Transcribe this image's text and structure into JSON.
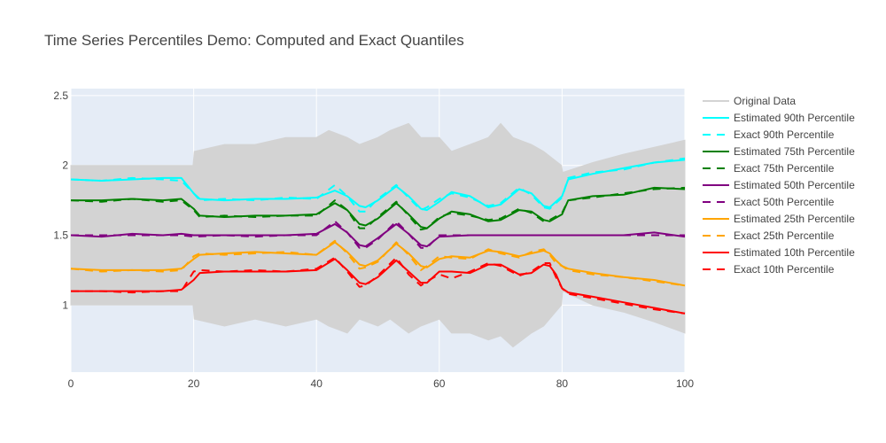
{
  "chart_data": {
    "type": "line",
    "title": "Time Series Percentiles Demo: Computed and Exact Quantiles",
    "xlabel": "",
    "ylabel": "",
    "xlim": [
      0,
      100
    ],
    "ylim": [
      0.52,
      2.55
    ],
    "x_ticks": [
      0,
      20,
      40,
      60,
      80,
      100
    ],
    "y_ticks": [
      1,
      1.5,
      2,
      2.5
    ],
    "grid": true,
    "legend_position": "right",
    "colors": {
      "plot_bg": "#e5ecf6",
      "grid": "#ffffff"
    },
    "series": [
      {
        "name": "Original Data",
        "color": "#d3d3d3",
        "dash": "solid",
        "band": true,
        "x": [
          0,
          5,
          10,
          15,
          19.9,
          20.1,
          25,
          30,
          35,
          40,
          42,
          45,
          47,
          50,
          52,
          55,
          57,
          60,
          62,
          65,
          68,
          70,
          72,
          75,
          77,
          79.9,
          80.1,
          85,
          90,
          95,
          100
        ],
        "lower": [
          1.0,
          1.0,
          1.0,
          1.0,
          1.0,
          0.9,
          0.85,
          0.9,
          0.85,
          0.9,
          0.85,
          0.8,
          0.9,
          0.85,
          0.9,
          0.8,
          0.85,
          0.9,
          0.8,
          0.8,
          0.75,
          0.78,
          0.7,
          0.8,
          0.85,
          1.0,
          1.1,
          1.0,
          0.95,
          0.88,
          0.8
        ],
        "upper": [
          2.0,
          2.0,
          2.0,
          2.0,
          2.0,
          2.1,
          2.15,
          2.15,
          2.2,
          2.2,
          2.25,
          2.2,
          2.15,
          2.2,
          2.25,
          2.3,
          2.2,
          2.2,
          2.1,
          2.15,
          2.2,
          2.3,
          2.2,
          2.15,
          2.1,
          2.0,
          1.95,
          2.02,
          2.08,
          2.13,
          2.18
        ]
      },
      {
        "name": "Estimated 90th Percentile",
        "color": "#00ffff",
        "dash": "solid",
        "x": [
          0,
          5,
          10,
          15,
          18,
          20,
          21,
          25,
          30,
          35,
          40,
          43,
          45,
          47,
          48,
          50,
          53,
          55,
          57,
          58,
          60,
          62,
          65,
          68,
          70,
          73,
          75,
          77,
          78,
          80,
          81,
          85,
          90,
          95,
          100
        ],
        "y": [
          1.9,
          1.89,
          1.9,
          1.91,
          1.91,
          1.8,
          1.76,
          1.75,
          1.76,
          1.76,
          1.77,
          1.82,
          1.78,
          1.71,
          1.7,
          1.75,
          1.85,
          1.78,
          1.69,
          1.68,
          1.74,
          1.81,
          1.78,
          1.7,
          1.72,
          1.83,
          1.8,
          1.71,
          1.7,
          1.78,
          1.9,
          1.94,
          1.98,
          2.02,
          2.04
        ]
      },
      {
        "name": "Exact 90th Percentile",
        "color": "#00ffff",
        "dash": "dash",
        "x": [
          0,
          5,
          10,
          15,
          18,
          20,
          21,
          25,
          30,
          35,
          40,
          43,
          45,
          47,
          48,
          50,
          53,
          55,
          57,
          58,
          60,
          62,
          65,
          68,
          70,
          73,
          75,
          77,
          78,
          80,
          81,
          85,
          90,
          95,
          100
        ],
        "y": [
          1.9,
          1.89,
          1.91,
          1.9,
          1.89,
          1.8,
          1.75,
          1.76,
          1.75,
          1.77,
          1.76,
          1.86,
          1.78,
          1.67,
          1.67,
          1.76,
          1.86,
          1.77,
          1.68,
          1.7,
          1.76,
          1.8,
          1.77,
          1.71,
          1.73,
          1.84,
          1.79,
          1.7,
          1.69,
          1.77,
          1.91,
          1.95,
          1.97,
          2.02,
          2.05
        ]
      },
      {
        "name": "Estimated 75th Percentile",
        "color": "#008000",
        "dash": "solid",
        "x": [
          0,
          5,
          10,
          15,
          18,
          20,
          21,
          25,
          30,
          35,
          40,
          43,
          45,
          47,
          48,
          50,
          53,
          55,
          57,
          58,
          60,
          62,
          65,
          68,
          70,
          73,
          75,
          77,
          78,
          80,
          81,
          85,
          90,
          95,
          100
        ],
        "y": [
          1.75,
          1.75,
          1.76,
          1.75,
          1.76,
          1.69,
          1.64,
          1.63,
          1.64,
          1.64,
          1.65,
          1.73,
          1.68,
          1.58,
          1.57,
          1.62,
          1.73,
          1.65,
          1.56,
          1.55,
          1.62,
          1.67,
          1.65,
          1.6,
          1.61,
          1.68,
          1.67,
          1.61,
          1.6,
          1.65,
          1.75,
          1.78,
          1.79,
          1.84,
          1.83
        ]
      },
      {
        "name": "Exact 75th Percentile",
        "color": "#008000",
        "dash": "dash",
        "x": [
          0,
          5,
          10,
          15,
          18,
          20,
          21,
          25,
          30,
          35,
          40,
          43,
          45,
          47,
          48,
          50,
          53,
          55,
          57,
          58,
          60,
          62,
          65,
          68,
          70,
          73,
          75,
          77,
          78,
          80,
          81,
          85,
          90,
          95,
          100
        ],
        "y": [
          1.75,
          1.74,
          1.76,
          1.74,
          1.75,
          1.68,
          1.63,
          1.64,
          1.63,
          1.64,
          1.64,
          1.75,
          1.68,
          1.55,
          1.55,
          1.63,
          1.74,
          1.64,
          1.54,
          1.55,
          1.63,
          1.66,
          1.64,
          1.61,
          1.62,
          1.69,
          1.66,
          1.6,
          1.61,
          1.66,
          1.75,
          1.77,
          1.8,
          1.83,
          1.84
        ]
      },
      {
        "name": "Estimated 50th Percentile",
        "color": "#800080",
        "dash": "solid",
        "x": [
          0,
          5,
          10,
          15,
          18,
          20,
          25,
          30,
          35,
          40,
          43,
          45,
          47,
          48,
          50,
          53,
          55,
          57,
          58,
          60,
          65,
          70,
          75,
          80,
          85,
          90,
          95,
          100
        ],
        "y": [
          1.5,
          1.49,
          1.51,
          1.5,
          1.51,
          1.5,
          1.5,
          1.5,
          1.5,
          1.51,
          1.58,
          1.52,
          1.43,
          1.42,
          1.48,
          1.58,
          1.51,
          1.43,
          1.42,
          1.49,
          1.5,
          1.5,
          1.5,
          1.5,
          1.5,
          1.5,
          1.52,
          1.49
        ]
      },
      {
        "name": "Exact 50th Percentile",
        "color": "#800080",
        "dash": "dash",
        "x": [
          0,
          5,
          10,
          15,
          18,
          20,
          25,
          30,
          35,
          40,
          43,
          45,
          47,
          48,
          50,
          53,
          55,
          57,
          58,
          60,
          65,
          70,
          75,
          80,
          85,
          90,
          95,
          100
        ],
        "y": [
          1.5,
          1.5,
          1.5,
          1.5,
          1.5,
          1.49,
          1.5,
          1.49,
          1.5,
          1.5,
          1.6,
          1.52,
          1.41,
          1.41,
          1.47,
          1.6,
          1.51,
          1.41,
          1.41,
          1.5,
          1.5,
          1.5,
          1.5,
          1.5,
          1.5,
          1.5,
          1.5,
          1.5
        ]
      },
      {
        "name": "Estimated 25th Percentile",
        "color": "#ffa500",
        "dash": "solid",
        "x": [
          0,
          5,
          10,
          15,
          18,
          20,
          21,
          25,
          30,
          35,
          40,
          43,
          45,
          47,
          48,
          50,
          53,
          55,
          57,
          58,
          60,
          62,
          65,
          68,
          70,
          73,
          75,
          77,
          78,
          79,
          80,
          81,
          85,
          90,
          95,
          100
        ],
        "y": [
          1.26,
          1.25,
          1.25,
          1.25,
          1.26,
          1.33,
          1.36,
          1.37,
          1.38,
          1.37,
          1.36,
          1.45,
          1.38,
          1.29,
          1.28,
          1.32,
          1.44,
          1.37,
          1.28,
          1.27,
          1.33,
          1.35,
          1.34,
          1.39,
          1.38,
          1.35,
          1.37,
          1.39,
          1.37,
          1.32,
          1.28,
          1.26,
          1.23,
          1.2,
          1.18,
          1.14
        ]
      },
      {
        "name": "Exact 25th Percentile",
        "color": "#ffa500",
        "dash": "dash",
        "x": [
          0,
          5,
          10,
          15,
          18,
          20,
          21,
          25,
          30,
          35,
          40,
          43,
          45,
          47,
          48,
          50,
          53,
          55,
          57,
          58,
          60,
          62,
          65,
          68,
          70,
          73,
          75,
          77,
          78,
          79,
          80,
          81,
          85,
          90,
          95,
          100
        ],
        "y": [
          1.26,
          1.24,
          1.25,
          1.24,
          1.25,
          1.35,
          1.37,
          1.36,
          1.37,
          1.38,
          1.36,
          1.46,
          1.37,
          1.26,
          1.27,
          1.31,
          1.45,
          1.36,
          1.25,
          1.28,
          1.35,
          1.34,
          1.33,
          1.4,
          1.37,
          1.34,
          1.38,
          1.4,
          1.36,
          1.3,
          1.28,
          1.25,
          1.22,
          1.2,
          1.17,
          1.14
        ]
      },
      {
        "name": "Estimated 10th Percentile",
        "color": "#ff0000",
        "dash": "solid",
        "x": [
          0,
          5,
          10,
          15,
          18,
          20,
          21,
          25,
          30,
          35,
          40,
          43,
          45,
          47,
          48,
          50,
          53,
          55,
          57,
          58,
          60,
          62,
          65,
          68,
          70,
          73,
          75,
          77,
          78,
          79,
          80,
          81,
          85,
          90,
          95,
          100
        ],
        "y": [
          1.1,
          1.1,
          1.1,
          1.1,
          1.11,
          1.18,
          1.23,
          1.24,
          1.24,
          1.24,
          1.25,
          1.33,
          1.25,
          1.16,
          1.15,
          1.2,
          1.32,
          1.24,
          1.16,
          1.16,
          1.24,
          1.24,
          1.23,
          1.29,
          1.29,
          1.22,
          1.23,
          1.29,
          1.28,
          1.22,
          1.12,
          1.09,
          1.06,
          1.02,
          0.98,
          0.94
        ]
      },
      {
        "name": "Exact 10th Percentile",
        "color": "#ff0000",
        "dash": "dash",
        "x": [
          0,
          5,
          10,
          15,
          18,
          20,
          21,
          25,
          30,
          35,
          40,
          43,
          45,
          47,
          48,
          50,
          53,
          55,
          57,
          58,
          60,
          62,
          65,
          68,
          70,
          73,
          75,
          77,
          78,
          79,
          80,
          81,
          85,
          90,
          95,
          100
        ],
        "y": [
          1.1,
          1.1,
          1.09,
          1.1,
          1.1,
          1.24,
          1.25,
          1.24,
          1.25,
          1.24,
          1.26,
          1.34,
          1.24,
          1.13,
          1.14,
          1.21,
          1.34,
          1.22,
          1.14,
          1.17,
          1.22,
          1.19,
          1.24,
          1.3,
          1.28,
          1.21,
          1.24,
          1.3,
          1.3,
          1.2,
          1.12,
          1.08,
          1.05,
          1.01,
          0.97,
          0.94
        ]
      }
    ]
  }
}
